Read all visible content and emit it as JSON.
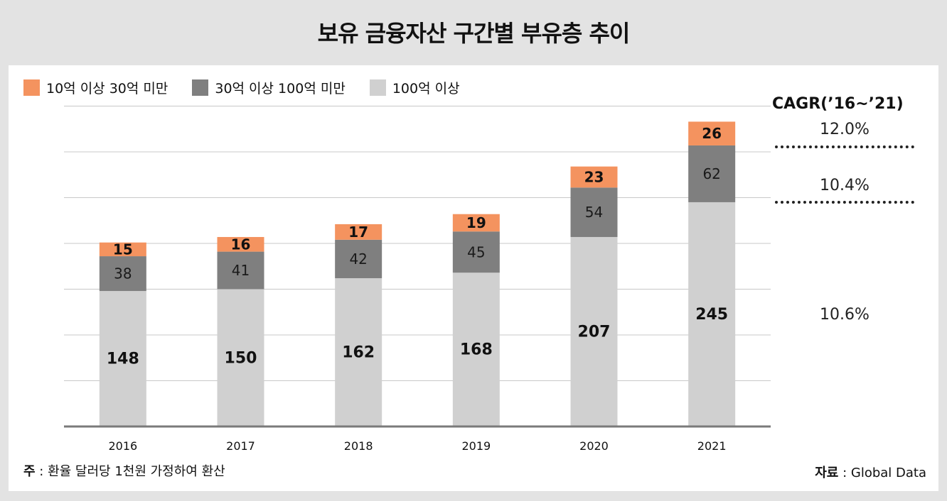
{
  "title": "보유 금융자산 구간별 부유층 추이",
  "legend": [
    {
      "label": "10억 이상 30억 미만",
      "color": "#f4935f"
    },
    {
      "label": "30억 이상 100억 미만",
      "color": "#7f7f7f"
    },
    {
      "label": "100억 이상",
      "color": "#d0d0d0"
    }
  ],
  "chart_data": {
    "type": "bar",
    "stacked": true,
    "categories": [
      "2016",
      "2017",
      "2018",
      "2019",
      "2020",
      "2021"
    ],
    "series": [
      {
        "name": "100억 이상",
        "values": [
          148,
          150,
          162,
          168,
          207,
          245
        ],
        "color": "#d0d0d0"
      },
      {
        "name": "30억 이상 100억 미만",
        "values": [
          38,
          41,
          42,
          45,
          54,
          62
        ],
        "color": "#7f7f7f"
      },
      {
        "name": "10억 이상 30억 미만",
        "values": [
          15,
          16,
          17,
          19,
          23,
          26
        ],
        "color": "#f4935f"
      }
    ],
    "ylim": [
      0,
      350
    ],
    "grid": true,
    "legend_position": "top-left"
  },
  "cagr": {
    "title": "CAGR(’16~’21)",
    "values": [
      "12.0%",
      "10.4%",
      "10.6%"
    ]
  },
  "note": {
    "label": "주",
    "text": " : 환율 달러당 1천원 가정하여 환산"
  },
  "source": {
    "label": "자료",
    "text": " : Global Data"
  }
}
